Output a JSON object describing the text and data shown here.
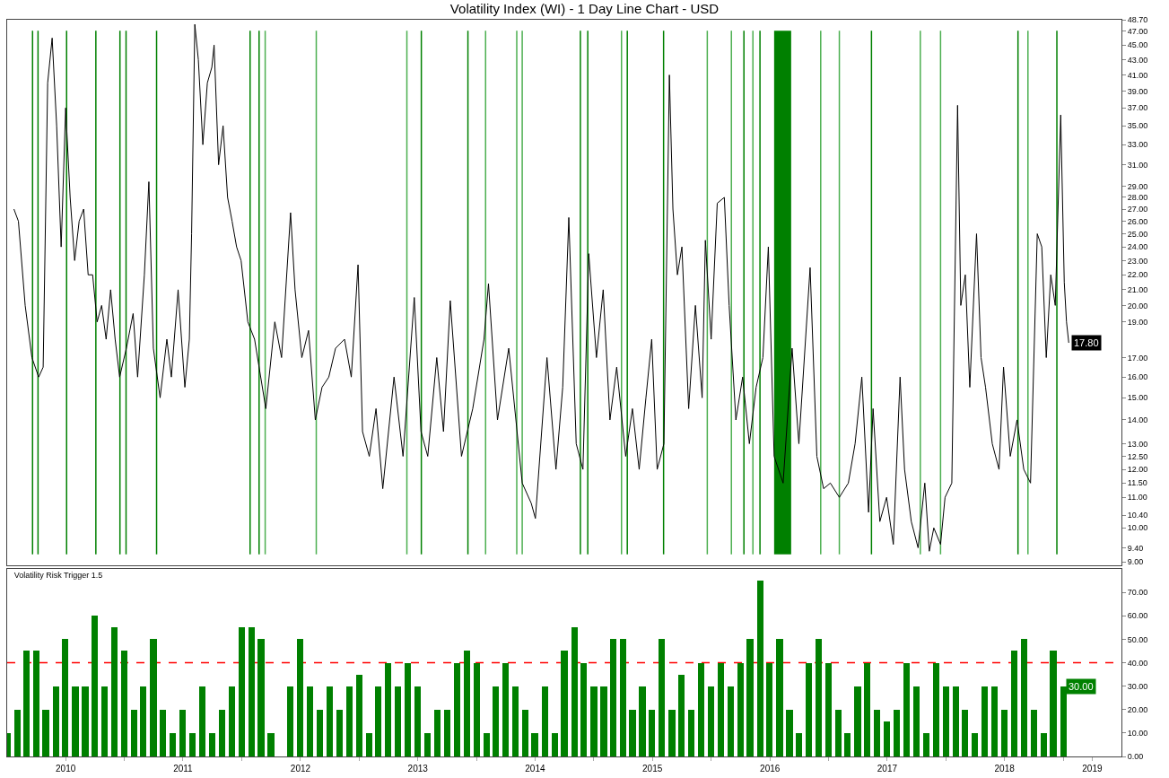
{
  "chart_data": [
    {
      "type": "line",
      "title": "Volatility Index (WI) - 1 Day Line Chart - USD",
      "x": [
        "2010-01-22",
        "2010-02-05",
        "2010-02-26",
        "2010-03-19",
        "2010-04-09",
        "2010-04-23",
        "2010-05-07",
        "2010-05-21",
        "2010-06-04",
        "2010-06-18",
        "2010-07-02",
        "2010-07-16",
        "2010-07-30",
        "2010-08-13",
        "2010-08-27",
        "2010-09-10",
        "2010-09-24",
        "2010-10-08",
        "2010-10-22",
        "2010-11-05",
        "2010-11-19",
        "2010-12-03",
        "2010-12-17",
        "2011-01-07",
        "2011-01-28",
        "2011-02-11",
        "2011-03-04",
        "2011-03-18",
        "2011-04-01",
        "2011-04-22",
        "2011-05-13",
        "2011-05-27",
        "2011-06-17",
        "2011-07-08",
        "2011-07-22",
        "2011-07-29",
        "2011-08-08",
        "2011-08-19",
        "2011-09-02",
        "2011-09-16",
        "2011-09-30",
        "2011-10-07",
        "2011-10-21",
        "2011-11-04",
        "2011-11-18",
        "2011-12-02",
        "2011-12-16",
        "2011-12-30",
        "2012-01-20",
        "2012-02-10",
        "2012-03-16",
        "2012-04-13",
        "2012-05-04",
        "2012-06-01",
        "2012-06-15",
        "2012-07-06",
        "2012-07-27",
        "2012-08-17",
        "2012-09-07",
        "2012-09-28",
        "2012-10-19",
        "2012-11-16",
        "2012-12-07",
        "2012-12-28",
        "2013-01-11",
        "2013-02-01",
        "2013-02-22",
        "2013-03-15",
        "2013-04-19",
        "2013-05-17",
        "2013-06-21",
        "2013-07-12",
        "2013-08-02",
        "2013-08-30",
        "2013-09-20",
        "2013-10-11",
        "2013-11-15",
        "2013-12-20",
        "2014-01-24",
        "2014-02-07",
        "2014-03-07",
        "2014-04-11",
        "2014-05-23",
        "2014-06-20",
        "2014-07-03",
        "2014-08-08",
        "2014-09-05",
        "2014-09-26",
        "2014-10-15",
        "2014-11-07",
        "2014-11-28",
        "2014-12-16",
        "2015-01-09",
        "2015-01-30",
        "2015-02-20",
        "2015-03-13",
        "2015-04-10",
        "2015-05-01",
        "2015-05-22",
        "2015-06-12",
        "2015-06-30",
        "2015-07-17",
        "2015-08-07",
        "2015-08-24",
        "2015-09-04",
        "2015-09-18",
        "2015-10-02",
        "2015-10-23",
        "2015-11-13",
        "2015-12-04",
        "2015-12-14",
        "2016-01-01",
        "2016-01-20",
        "2016-02-11",
        "2016-02-26",
        "2016-03-18",
        "2016-04-08",
        "2016-04-29",
        "2016-05-20",
        "2016-06-10",
        "2016-06-27",
        "2016-07-15",
        "2016-08-12",
        "2016-09-09",
        "2016-09-30",
        "2016-11-04",
        "2016-11-25",
        "2016-12-16",
        "2017-01-06",
        "2017-02-03",
        "2017-03-03",
        "2017-03-24",
        "2017-04-14",
        "2017-05-05",
        "2017-05-19",
        "2017-06-09",
        "2017-06-30",
        "2017-07-21",
        "2017-08-11",
        "2017-08-25",
        "2017-09-15",
        "2017-10-06",
        "2017-10-27",
        "2017-11-10",
        "2017-11-24",
        "2017-12-15",
        "2017-12-29",
        "2018-01-19",
        "2018-02-06",
        "2018-02-16",
        "2018-03-02",
        "2018-03-16",
        "2018-04-06",
        "2018-04-20",
        "2018-05-04",
        "2018-05-25",
        "2018-06-15",
        "2018-06-29",
        "2018-07-20",
        "2018-08-10",
        "2018-08-31",
        "2018-09-21",
        "2018-10-12",
        "2018-10-26",
        "2018-11-09",
        "2018-11-23",
        "2018-12-07",
        "2018-12-24",
        "2019-01-04",
        "2019-01-11",
        "2019-01-18"
      ],
      "series": [
        {
          "color": "#000000",
          "values": [
            27,
            26,
            20,
            17,
            16,
            16.5,
            40,
            46,
            35,
            24,
            37,
            28,
            23,
            26,
            27,
            22,
            22,
            19,
            20,
            18,
            21,
            18,
            16,
            17.5,
            19.5,
            16,
            22,
            29.4,
            17.5,
            15,
            18,
            16,
            21,
            15.5,
            18,
            25,
            48,
            43,
            33,
            40,
            42,
            45,
            31,
            35,
            28,
            26,
            24,
            23,
            19,
            18,
            14.5,
            19,
            17,
            26.7,
            21,
            17,
            18.5,
            14,
            15.5,
            16,
            17.5,
            18,
            16,
            22.7,
            13.5,
            12.5,
            14.5,
            11.3,
            16,
            12.5,
            20.5,
            13.5,
            12.5,
            17,
            13.5,
            20.3,
            12.5,
            14.5,
            18,
            21.4,
            14,
            17.5,
            11.5,
            10.8,
            10.3,
            17,
            12,
            15.5,
            26.3,
            13,
            12,
            23.5,
            17,
            21,
            14,
            16.5,
            12.5,
            14.5,
            12,
            15,
            18,
            12,
            13,
            41,
            27,
            22,
            24,
            14.5,
            20,
            15,
            24.5,
            18,
            27.5,
            28,
            20,
            14,
            16,
            13,
            15.5,
            17,
            24,
            12.5,
            11.5,
            17.5,
            13,
            22.5,
            12.5,
            11.3,
            11.5,
            11,
            11.5,
            13,
            16,
            10.5,
            14.5,
            10.2,
            11,
            9.5,
            16,
            12,
            10.2,
            9.4,
            11.5,
            9.3,
            10,
            9.5,
            11,
            11.5,
            37.3,
            20,
            22,
            15.5,
            25,
            17,
            15.5,
            13,
            12,
            16.5,
            12.5,
            14,
            12,
            11.5,
            25,
            24,
            17,
            22,
            20,
            36.2,
            21.5,
            19,
            17.8
          ]
        }
      ],
      "log": "y",
      "xlim": [
        "2010-01-01",
        "2019-07-01"
      ],
      "ylim": [
        8.9,
        48.7
      ],
      "yticks": [
        {
          "value": 9,
          "label": "9.00"
        },
        {
          "value": 9.4,
          "label": "9.40"
        },
        {
          "value": 10,
          "label": "10.00"
        },
        {
          "value": 10.4,
          "label": "10.40"
        },
        {
          "value": 11,
          "label": "11.00"
        },
        {
          "value": 11.5,
          "label": "11.50"
        },
        {
          "value": 12,
          "label": "12.00"
        },
        {
          "value": 12.5,
          "label": "12.50"
        },
        {
          "value": 13,
          "label": "13.00"
        },
        {
          "value": 14,
          "label": "14.00"
        },
        {
          "value": 15,
          "label": "15.00"
        },
        {
          "value": 16,
          "label": "16.00"
        },
        {
          "value": 17,
          "label": "17.00"
        },
        {
          "value": 19,
          "label": "19.00"
        },
        {
          "value": 20,
          "label": "20.00"
        },
        {
          "value": 21,
          "label": "21.00"
        },
        {
          "value": 22,
          "label": "22.00"
        },
        {
          "value": 23,
          "label": "23.00"
        },
        {
          "value": 24,
          "label": "24.00"
        },
        {
          "value": 25,
          "label": "25.00"
        },
        {
          "value": 26,
          "label": "26.00"
        },
        {
          "value": 27,
          "label": "27.00"
        },
        {
          "value": 28,
          "label": "28.00"
        },
        {
          "value": 29,
          "label": "29.00"
        },
        {
          "value": 31,
          "label": "31.00"
        },
        {
          "value": 33,
          "label": "33.00"
        },
        {
          "value": 35,
          "label": "35.00"
        },
        {
          "value": 37,
          "label": "37.00"
        },
        {
          "value": 39,
          "label": "39.00"
        },
        {
          "value": 41,
          "label": "41.00"
        },
        {
          "value": 43,
          "label": "43.00"
        },
        {
          "value": 45,
          "label": "45.00"
        },
        {
          "value": 47,
          "label": "47.00"
        },
        {
          "value": 48.7,
          "label": "48.70"
        }
      ],
      "annotations": [
        {
          "text": "17.80",
          "x": "2019-01-18",
          "y": 17.8
        }
      ],
      "ref_lines": [
        {
          "axis": "x",
          "value": "2010-03-21",
          "color": "#008000"
        },
        {
          "axis": "x",
          "value": "2010-04-07",
          "color": "#008000"
        },
        {
          "axis": "x",
          "value": "2010-07-05",
          "color": "#008000"
        },
        {
          "axis": "x",
          "value": "2010-10-04",
          "color": "#008000"
        },
        {
          "axis": "x",
          "value": "2010-12-18",
          "color": "#008000"
        },
        {
          "axis": "x",
          "value": "2011-01-06",
          "color": "#008000"
        },
        {
          "axis": "x",
          "value": "2011-04-11",
          "color": "#008000"
        },
        {
          "axis": "x",
          "value": "2012-01-27",
          "color": "#008000"
        },
        {
          "axis": "x",
          "value": "2012-02-24",
          "color": "#008000"
        },
        {
          "axis": "x",
          "value": "2012-03-14",
          "color": "#4caf50"
        },
        {
          "axis": "x",
          "value": "2012-08-20",
          "color": "#4caf50"
        },
        {
          "axis": "x",
          "value": "2013-05-29",
          "color": "#4caf50"
        },
        {
          "axis": "x",
          "value": "2013-07-13",
          "color": "#008000"
        },
        {
          "axis": "x",
          "value": "2013-12-05",
          "color": "#008000"
        },
        {
          "axis": "x",
          "value": "2014-01-29",
          "color": "#4caf50"
        },
        {
          "axis": "x",
          "value": "2014-05-06",
          "color": "#4caf50"
        },
        {
          "axis": "x",
          "value": "2014-05-23",
          "color": "#4caf50"
        },
        {
          "axis": "x",
          "value": "2014-11-20",
          "color": "#008000"
        },
        {
          "axis": "x",
          "value": "2014-12-13",
          "color": "#008000"
        },
        {
          "axis": "x",
          "value": "2015-03-28",
          "color": "#4caf50"
        },
        {
          "axis": "x",
          "value": "2015-04-15",
          "color": "#008000"
        },
        {
          "axis": "x",
          "value": "2015-08-06",
          "color": "#008000"
        },
        {
          "axis": "x",
          "value": "2015-12-20",
          "color": "#4caf50"
        },
        {
          "axis": "x",
          "value": "2016-03-04",
          "color": "#4caf50"
        },
        {
          "axis": "x",
          "value": "2016-04-12",
          "color": "#008000"
        },
        {
          "axis": "x",
          "value": "2016-05-10",
          "color": "#4caf50"
        },
        {
          "axis": "x",
          "value": "2016-06-01",
          "color": "#008000"
        },
        {
          "axis": "x",
          "value": "2016-12-07",
          "color": "#4caf50"
        },
        {
          "axis": "x",
          "value": "2017-02-03",
          "color": "#4caf50"
        },
        {
          "axis": "x",
          "value": "2017-05-14",
          "color": "#008000"
        },
        {
          "axis": "x",
          "value": "2017-10-13",
          "color": "#4caf50"
        },
        {
          "axis": "x",
          "value": "2017-12-15",
          "color": "#4caf50"
        },
        {
          "axis": "x",
          "value": "2018-08-13",
          "color": "#008000"
        },
        {
          "axis": "x",
          "value": "2018-09-13",
          "color": "#4caf50"
        },
        {
          "axis": "x",
          "value": "2018-12-12",
          "color": "#008000"
        }
      ],
      "bands": [
        {
          "axis": "x",
          "from": "2016-07-15",
          "to": "2016-09-06",
          "color": "#008000"
        }
      ],
      "tick_labels": "y"
    },
    {
      "type": "bar",
      "title": "Volatility Risk Trigger 1.5",
      "x": [
        "2010-01",
        "2010-02",
        "2010-03",
        "2010-04",
        "2010-05",
        "2010-06",
        "2010-07",
        "2010-08",
        "2010-09",
        "2010-10",
        "2010-11",
        "2010-12",
        "2011-01",
        "2011-02",
        "2011-03",
        "2011-04",
        "2011-05",
        "2011-06",
        "2011-07",
        "2011-08",
        "2011-09",
        "2011-10",
        "2011-11",
        "2011-12",
        "2012-01",
        "2012-02",
        "2012-03",
        "2012-04",
        "2012-05",
        "2012-06",
        "2012-07",
        "2012-08",
        "2012-09",
        "2012-10",
        "2012-11",
        "2012-12",
        "2013-01",
        "2013-02",
        "2013-03",
        "2013-04",
        "2013-05",
        "2013-06",
        "2013-07",
        "2013-08",
        "2013-09",
        "2013-10",
        "2013-11",
        "2013-12",
        "2014-01",
        "2014-02",
        "2014-03",
        "2014-04",
        "2014-05",
        "2014-06",
        "2014-07",
        "2014-08",
        "2014-09",
        "2014-10",
        "2014-11",
        "2014-12",
        "2015-01",
        "2015-02",
        "2015-03",
        "2015-04",
        "2015-05",
        "2015-06",
        "2015-07",
        "2015-08",
        "2015-09",
        "2015-10",
        "2015-11",
        "2015-12",
        "2016-01",
        "2016-02",
        "2016-03",
        "2016-04",
        "2016-05",
        "2016-06",
        "2016-07",
        "2016-08",
        "2016-09",
        "2016-10",
        "2016-11",
        "2016-12",
        "2017-01",
        "2017-02",
        "2017-03",
        "2017-04",
        "2017-05",
        "2017-06",
        "2017-07",
        "2017-08",
        "2017-09",
        "2017-10",
        "2017-11",
        "2017-12",
        "2018-01",
        "2018-02",
        "2018-03",
        "2018-04",
        "2018-05",
        "2018-06",
        "2018-07",
        "2018-08",
        "2018-09",
        "2018-10",
        "2018-11",
        "2018-12",
        "2019-01"
      ],
      "series": [
        {
          "color": "#008000",
          "values": [
            10,
            20,
            45,
            45,
            20,
            30,
            50,
            30,
            30,
            60,
            30,
            55,
            45,
            20,
            30,
            50,
            20,
            10,
            20,
            10,
            30,
            10,
            20,
            30,
            55,
            55,
            50,
            10,
            0,
            30,
            50,
            30,
            20,
            30,
            20,
            30,
            35,
            10,
            30,
            40,
            30,
            40,
            30,
            10,
            20,
            20,
            40,
            45,
            40,
            10,
            30,
            40,
            30,
            20,
            10,
            30,
            10,
            45,
            55,
            40,
            30,
            30,
            50,
            50,
            20,
            30,
            20,
            50,
            20,
            35,
            20,
            40,
            30,
            40,
            30,
            40,
            50,
            75,
            40,
            50,
            20,
            10,
            40,
            50,
            40,
            20,
            10,
            30,
            40,
            20,
            15,
            20,
            40,
            30,
            10,
            40,
            30,
            30,
            20,
            10,
            30,
            30,
            20,
            45,
            50,
            20,
            10,
            45,
            30
          ]
        }
      ],
      "xlim": [
        "2010-01-01",
        "2019-07-01"
      ],
      "xticks": [
        {
          "value": "2010-07-02",
          "label": "2010"
        },
        {
          "value": "2011-01-01",
          "label": null
        },
        {
          "value": "2011-07-02",
          "label": "2011"
        },
        {
          "value": "2012-01-01",
          "label": null
        },
        {
          "value": "2012-07-02",
          "label": "2012"
        },
        {
          "value": "2013-01-01",
          "label": null
        },
        {
          "value": "2013-07-02",
          "label": "2013"
        },
        {
          "value": "2014-01-01",
          "label": null
        },
        {
          "value": "2014-07-02",
          "label": "2014"
        },
        {
          "value": "2015-01-01",
          "label": null
        },
        {
          "value": "2015-07-02",
          "label": "2015"
        },
        {
          "value": "2016-01-01",
          "label": null
        },
        {
          "value": "2016-07-02",
          "label": "2016"
        },
        {
          "value": "2017-01-01",
          "label": null
        },
        {
          "value": "2017-07-02",
          "label": "2017"
        },
        {
          "value": "2018-01-01",
          "label": null
        },
        {
          "value": "2018-07-02",
          "label": "2018"
        },
        {
          "value": "2019-01-01",
          "label": null
        },
        {
          "value": "2019-04-01",
          "label": "2019"
        }
      ],
      "ylim": [
        0,
        80
      ],
      "yticks": [
        {
          "value": 0,
          "label": "0.00"
        },
        {
          "value": 10,
          "label": "10.00"
        },
        {
          "value": 20,
          "label": "20.00"
        },
        {
          "value": 30,
          "label": "30.00"
        },
        {
          "value": 40,
          "label": "40.00"
        },
        {
          "value": 50,
          "label": "50.00"
        },
        {
          "value": 60,
          "label": "60.00"
        },
        {
          "value": 70,
          "label": "70.00"
        }
      ],
      "annotations": [
        {
          "text": "30.00",
          "x": "2019-01",
          "y": 30
        }
      ],
      "ref_lines": [
        {
          "axis": "y",
          "value": 40,
          "color": "#ff0000",
          "line_style": "dashed"
        }
      ]
    }
  ]
}
